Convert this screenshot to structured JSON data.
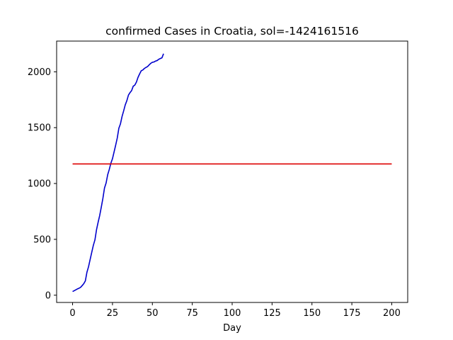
{
  "chart_data": {
    "type": "line",
    "title": "confirmed Cases in Croatia, sol=-1424161516",
    "xlabel": "Day",
    "ylabel": "",
    "xlim": [
      -10,
      210
    ],
    "ylim": [
      -65,
      2275
    ],
    "xticks": [
      0,
      25,
      50,
      75,
      100,
      125,
      150,
      175,
      200
    ],
    "yticks": [
      0,
      500,
      1000,
      1500,
      2000
    ],
    "grid": false,
    "series": [
      {
        "color": "#0000cc",
        "x": [
          0,
          1,
          2,
          3,
          4,
          5,
          6,
          7,
          8,
          9,
          10,
          11,
          12,
          13,
          14,
          15,
          16,
          17,
          18,
          19,
          20,
          21,
          22,
          23,
          24,
          25,
          26,
          27,
          28,
          29,
          30,
          31,
          32,
          33,
          34,
          35,
          36,
          37,
          38,
          39,
          40,
          41,
          42,
          43,
          44,
          45,
          46,
          47,
          48,
          49,
          50,
          51,
          52,
          53,
          54,
          55,
          56,
          57
        ],
        "y": [
          33,
          40,
          48,
          56,
          62,
          70,
          86,
          103,
          128,
          206,
          255,
          320,
          383,
          446,
          495,
          586,
          653,
          714,
          789,
          867,
          960,
          1004,
          1079,
          1126,
          1182,
          1222,
          1282,
          1343,
          1407,
          1495,
          1534,
          1600,
          1650,
          1704,
          1741,
          1791,
          1814,
          1832,
          1871,
          1881,
          1908,
          1950,
          1981,
          2009,
          2016,
          2030,
          2039,
          2047,
          2062,
          2076,
          2085,
          2088,
          2096,
          2101,
          2112,
          2119,
          2125,
          2162
        ]
      },
      {
        "color": "#dd0000",
        "x": [
          0,
          200
        ],
        "y": [
          1175,
          1175
        ]
      }
    ]
  }
}
